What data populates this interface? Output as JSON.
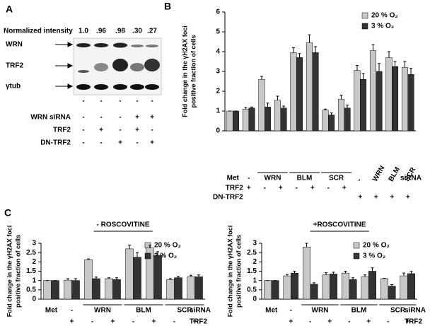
{
  "panel_labels": [
    "A",
    "B",
    "C"
  ],
  "panel_a": {
    "intensity_title": "Normalized intensity",
    "intensities": [
      "1.0",
      ".96",
      ".98",
      ".30",
      ".27"
    ],
    "bands": [
      "WRN",
      "TRF2",
      "γtub"
    ],
    "lane_marks": [
      "-",
      "-",
      "-",
      "-",
      "-"
    ],
    "conditions": [
      {
        "name": "WRN siRNA",
        "signs": [
          "-",
          "-",
          "-",
          "+",
          "+"
        ]
      },
      {
        "name": "TRF2",
        "signs": [
          "-",
          "+",
          "-",
          "+",
          "-"
        ]
      },
      {
        "name": "DN-TRF2",
        "signs": [
          "-",
          "-",
          "+",
          "-",
          "+"
        ]
      }
    ]
  },
  "chart_data": [
    {
      "type": "bar",
      "ylabel": [
        "Fold change in the γH2AX foci",
        "positive fraction of cells"
      ],
      "categories": [
        "Met",
        "-",
        "WRN",
        null,
        "BLM",
        null,
        "SCR",
        null,
        "-",
        "WRN",
        "BLM",
        "SCR"
      ],
      "xlabel": "siRNA",
      "label_rows": [
        {
          "name": "TRF2",
          "labels": [
            null,
            "+",
            "-",
            "+",
            "-",
            "+",
            "-",
            "+",
            null,
            null,
            null,
            null
          ]
        },
        {
          "name": "DN-TRF2",
          "labels": [
            null,
            null,
            null,
            null,
            null,
            null,
            null,
            null,
            "+",
            "+",
            "+",
            "+"
          ]
        }
      ],
      "series": [
        {
          "name": "20 % O₂",
          "color": "#c8c8c8",
          "values": [
            1.0,
            1.1,
            2.6,
            1.55,
            3.95,
            4.45,
            1.05,
            1.6,
            3.05,
            4.05,
            3.7,
            3.2
          ],
          "errors": [
            0,
            0.08,
            0.15,
            0.2,
            0.25,
            0.4,
            0.05,
            0.2,
            0.25,
            0.3,
            0.3,
            0.3
          ]
        },
        {
          "name": "3 % O₂",
          "color": "#333333",
          "values": [
            1.0,
            1.15,
            1.2,
            1.15,
            3.7,
            3.95,
            0.8,
            1.15,
            2.6,
            3.0,
            3.25,
            2.85
          ],
          "errors": [
            0,
            0.05,
            0.2,
            0.1,
            0.2,
            0.3,
            0.1,
            0.15,
            0.3,
            0.4,
            0.25,
            0.3
          ]
        }
      ],
      "ylim": [
        0,
        6
      ],
      "yticks": [
        0,
        1,
        2,
        3,
        4,
        5,
        6
      ],
      "legend": "upper right"
    },
    {
      "type": "bar",
      "title": "- ROSCOVITINE",
      "ylabel": [
        "Fold change in the γH2AX foci",
        "positive fraction of cells"
      ],
      "categories": [
        "Met",
        "-",
        "WRN",
        null,
        "BLM",
        null,
        "SCR",
        null
      ],
      "xlabel": "siRNA",
      "label_rows": [
        {
          "name": "TRF2",
          "labels": [
            null,
            "+",
            "-",
            "+",
            "-",
            "+",
            "-",
            "+"
          ]
        }
      ],
      "series": [
        {
          "name": "20 % O₂",
          "color": "#c8c8c8",
          "values": [
            1,
            1.02,
            2.12,
            1.1,
            2.7,
            2.75,
            1.05,
            1.2
          ],
          "errors": [
            0,
            0.08,
            0.04,
            0.05,
            0.2,
            0.15,
            0.05,
            0.08
          ]
        },
        {
          "name": "3 % O₂",
          "color": "#333333",
          "values": [
            1,
            1.0,
            1.1,
            1.05,
            2.25,
            2.35,
            1.15,
            1.2
          ],
          "errors": [
            0,
            0.1,
            0.08,
            0.1,
            0.25,
            0.2,
            0.08,
            0.1
          ]
        }
      ],
      "ylim": [
        0,
        3
      ],
      "yticks": [
        0,
        0.5,
        1,
        1.5,
        2,
        2.5,
        3
      ],
      "legend": "upper right"
    },
    {
      "type": "bar",
      "title": "+ROSCOVITINE",
      "ylabel": [
        "Fold change in the γH2AX foci",
        "positive fraction of cells"
      ],
      "categories": [
        "Met",
        "-",
        "WRN",
        null,
        "BLM",
        null,
        "SCR",
        null
      ],
      "xlabel": "siRNA",
      "label_rows": [
        {
          "name": "TRF2",
          "labels": [
            null,
            "+",
            "-",
            "+",
            "-",
            "+",
            "-",
            "+"
          ]
        }
      ],
      "series": [
        {
          "name": "20 % O₂",
          "color": "#c8c8c8",
          "values": [
            1,
            1.25,
            2.8,
            1.3,
            1.4,
            1.2,
            1.1,
            1.25
          ],
          "errors": [
            0,
            0.08,
            0.2,
            0.12,
            0.1,
            0.1,
            0.02,
            0.15
          ]
        },
        {
          "name": "3 % O₂",
          "color": "#333333",
          "values": [
            1,
            1.4,
            0.8,
            1.35,
            1.05,
            1.5,
            0.7,
            1.37
          ],
          "errors": [
            0,
            0.1,
            0.08,
            0.1,
            0.1,
            0.18,
            0.08,
            0.12
          ]
        }
      ],
      "ylim": [
        0,
        3
      ],
      "yticks": [
        0,
        0.5,
        1,
        1.5,
        2,
        2.5,
        3
      ],
      "legend": "upper right"
    }
  ]
}
